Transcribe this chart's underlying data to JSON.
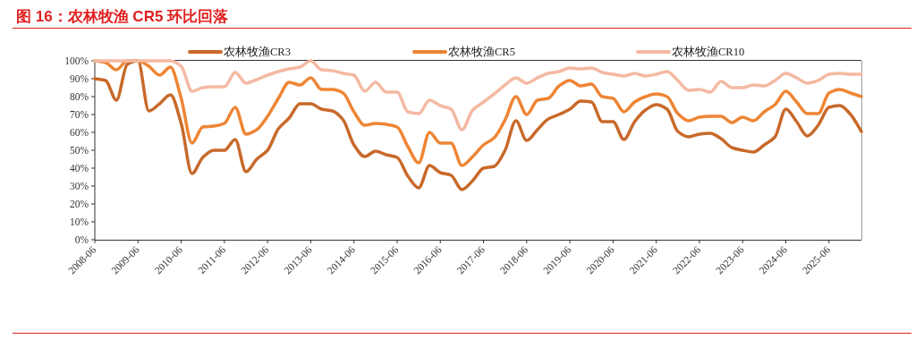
{
  "chart_data": {
    "type": "line",
    "title": "图 16：农林牧渔 CR5 环比回落",
    "categories": [
      "2008-06",
      null,
      null,
      null,
      "2009-06",
      null,
      null,
      null,
      "2010-06",
      null,
      null,
      null,
      "2011-06",
      null,
      null,
      null,
      "2012-06",
      null,
      null,
      null,
      "2013-06",
      null,
      null,
      null,
      "2014-06",
      null,
      null,
      null,
      "2015-06",
      null,
      null,
      null,
      "2016-06",
      null,
      null,
      null,
      "2017-06",
      null,
      null,
      null,
      "2018-06",
      null,
      null,
      null,
      "2019-06",
      null,
      null,
      null,
      "2020-06",
      null,
      null,
      null,
      "2021-06",
      null,
      null,
      null,
      "2022-06",
      null,
      null,
      null,
      "2023-06",
      null,
      null,
      null,
      "2024-06",
      null,
      null,
      null,
      "2025-06",
      null,
      null,
      null
    ],
    "series": [
      {
        "name": "农林牧渔CR3",
        "color": "#c8692a",
        "values": [
          90,
          89,
          78,
          98,
          100,
          72,
          76,
          81,
          65,
          37,
          46,
          50,
          50,
          56,
          38,
          45,
          50,
          62,
          68,
          76,
          76,
          73,
          72,
          67,
          53,
          46.5,
          49.5,
          47.5,
          46,
          35.5,
          29,
          41.5,
          37.5,
          36,
          28,
          33,
          40,
          41,
          50,
          66.5,
          55.5,
          61.5,
          67.5,
          70,
          73,
          77.5,
          77,
          66,
          66,
          56,
          66,
          72.5,
          75.5,
          73,
          60.5,
          57.5,
          59,
          59.5,
          56.5,
          51.5,
          50,
          49,
          53,
          57.5,
          73,
          66,
          58,
          64,
          74,
          75,
          70,
          60.5
        ]
      },
      {
        "name": "农林牧渔CR5",
        "color": "#ee8534",
        "values": [
          100,
          99,
          95,
          100,
          100,
          97,
          92,
          96.5,
          79,
          54,
          63,
          63.5,
          65,
          74,
          59,
          61.5,
          69,
          79,
          88,
          86.5,
          90.5,
          84,
          84,
          82,
          71.5,
          64,
          65,
          64.5,
          63,
          52,
          43,
          60,
          54,
          54,
          41.5,
          46.5,
          53,
          57,
          67,
          80,
          70,
          78,
          79,
          86,
          89,
          86,
          87,
          80,
          79,
          71.5,
          77,
          80,
          81.5,
          80,
          70.5,
          66.5,
          68.5,
          69,
          69,
          65.5,
          68.5,
          66.5,
          71.5,
          75.5,
          83,
          77,
          70.5,
          70.5,
          82,
          84,
          82,
          80
        ]
      },
      {
        "name": "农林牧渔CR10",
        "color": "#f4b9a2",
        "values": [
          100,
          100,
          100,
          100,
          100,
          100,
          100,
          100,
          97,
          83,
          85,
          85.5,
          85.5,
          93.5,
          87.5,
          89.5,
          92,
          94,
          95.5,
          96.5,
          100,
          95,
          94.5,
          93,
          92,
          83,
          88,
          82.5,
          82.5,
          71.5,
          70.5,
          78,
          75,
          73,
          61.5,
          72.5,
          77,
          81.5,
          86.5,
          90.5,
          87.5,
          90.5,
          93,
          94,
          96,
          95.5,
          96,
          93.5,
          92.5,
          91.5,
          93,
          91.5,
          92.5,
          94,
          89,
          83.5,
          84,
          82.5,
          88.5,
          85,
          85,
          86.5,
          86,
          89,
          93,
          90.5,
          87.5,
          89,
          92.5,
          93,
          92.5,
          92.5
        ]
      }
    ],
    "ylim": [
      0,
      100
    ],
    "yticks": [
      {
        "value": 0,
        "label": "0%"
      },
      {
        "value": 10,
        "label": "10%"
      },
      {
        "value": 20,
        "label": "20%"
      },
      {
        "value": 30,
        "label": "30%"
      },
      {
        "value": 40,
        "label": "40%"
      },
      {
        "value": 50,
        "label": "50%"
      },
      {
        "value": 60,
        "label": "60%"
      },
      {
        "value": 70,
        "label": "70%"
      },
      {
        "value": 80,
        "label": "80%"
      },
      {
        "value": 90,
        "label": "90%"
      },
      {
        "value": 100,
        "label": "100%"
      }
    ],
    "legend": "top"
  }
}
